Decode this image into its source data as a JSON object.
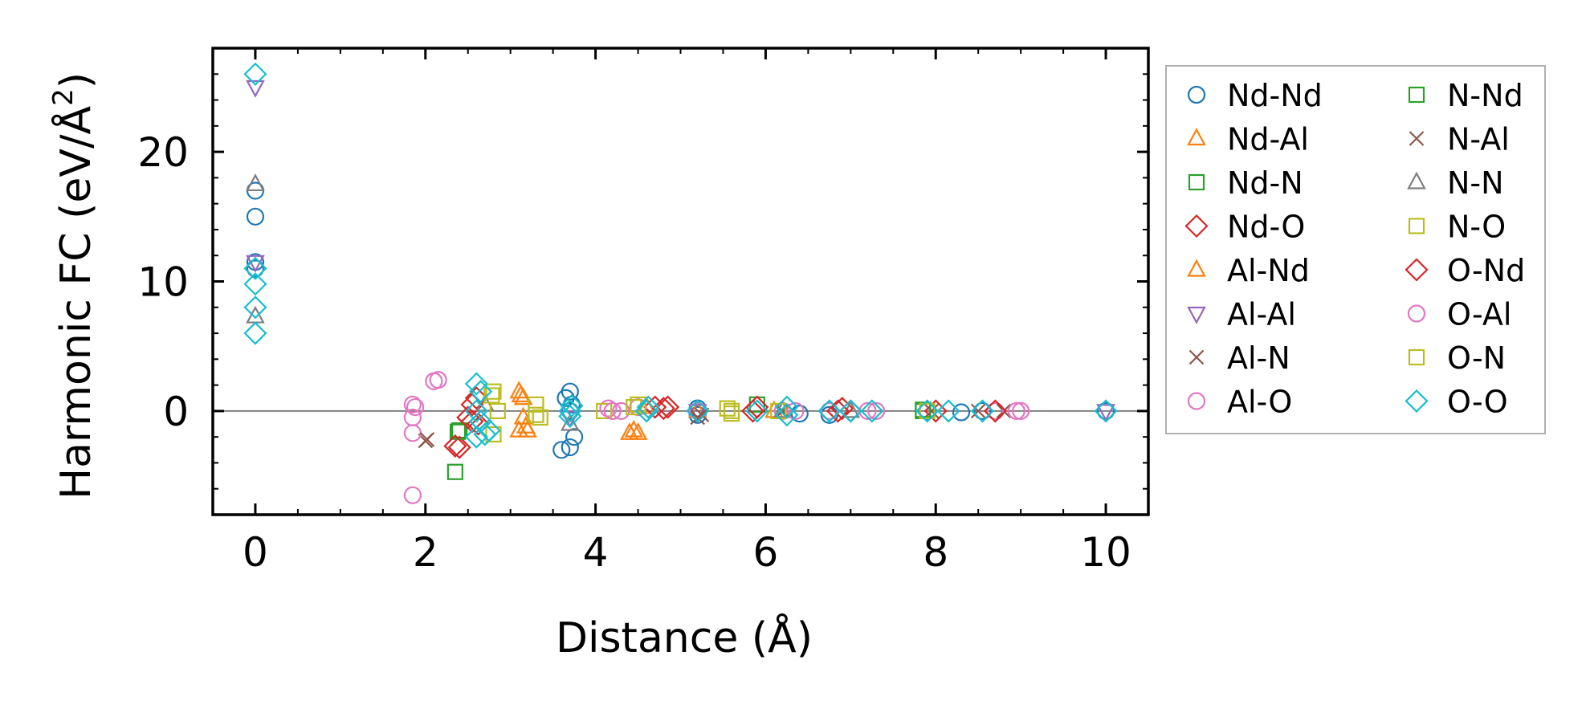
{
  "chart_data": {
    "type": "scatter",
    "title": "",
    "xlabel": "Distance (Å)",
    "ylabel": "Harmonic FC (eV/Å",
    "ylabel_sup": "2",
    "ylabel_end": ")",
    "xlim": [
      -0.5,
      10.5
    ],
    "ylim": [
      -8,
      28
    ],
    "xticks": [
      0,
      2,
      4,
      6,
      8,
      10
    ],
    "xtick_labels": [
      "0",
      "2",
      "4",
      "6",
      "8",
      "10"
    ],
    "yticks": [
      0,
      10,
      20
    ],
    "ytick_labels": [
      "0",
      "10",
      "20"
    ],
    "x_minor_step": 0.5,
    "y_minor_step": 2,
    "zero_line": true,
    "legend": {
      "placement": "outside-right",
      "columns": 2
    },
    "series": [
      {
        "name": "Nd-Nd",
        "marker": "circle",
        "color": "#1f77b4",
        "points": [
          [
            0,
            17
          ],
          [
            0,
            15
          ],
          [
            0,
            11.5
          ],
          [
            0,
            11
          ],
          [
            3.6,
            -3
          ],
          [
            3.65,
            1
          ],
          [
            3.7,
            1.5
          ],
          [
            3.72,
            0.5
          ],
          [
            3.7,
            -2.8
          ],
          [
            3.75,
            -2
          ],
          [
            3.7,
            0
          ],
          [
            5.2,
            0.2
          ],
          [
            5.2,
            -0.3
          ],
          [
            6.4,
            -0.2
          ],
          [
            6.75,
            -0.3
          ],
          [
            7.9,
            0
          ],
          [
            8.3,
            -0.1
          ],
          [
            8.55,
            0
          ],
          [
            10,
            0
          ]
        ]
      },
      {
        "name": "Nd-Al",
        "marker": "triangle-up",
        "color": "#ff7f0e",
        "points": [
          [
            3.1,
            1.5
          ],
          [
            3.15,
            1
          ],
          [
            3.1,
            -1.5
          ],
          [
            3.2,
            -1.5
          ],
          [
            3.15,
            -0.5
          ],
          [
            4.4,
            -1.7
          ],
          [
            4.5,
            -1.7
          ],
          [
            4.6,
            0.3
          ],
          [
            5.2,
            0
          ],
          [
            6.1,
            0
          ]
        ]
      },
      {
        "name": "Nd-N",
        "marker": "square",
        "color": "#2ca02c",
        "points": [
          [
            2.35,
            -4.7
          ],
          [
            2.4,
            -1.5
          ],
          [
            5.9,
            0.5
          ],
          [
            7.85,
            0
          ]
        ]
      },
      {
        "name": "Nd-O",
        "marker": "diamond",
        "color": "#d62728",
        "points": [
          [
            2.4,
            -2.8
          ],
          [
            2.5,
            -0.5
          ],
          [
            2.55,
            0.5
          ],
          [
            2.6,
            1
          ],
          [
            2.62,
            -1
          ],
          [
            4.7,
            0.3
          ],
          [
            4.85,
            0.3
          ],
          [
            5.9,
            0.3
          ],
          [
            6.9,
            0.2
          ],
          [
            7.0,
            0
          ],
          [
            8.0,
            0
          ]
        ]
      },
      {
        "name": "Al-Nd",
        "marker": "triangle-up",
        "color": "#ff7f0e",
        "points": [
          [
            3.12,
            1.2
          ],
          [
            3.18,
            -1.2
          ],
          [
            4.45,
            -1.5
          ],
          [
            5.2,
            0
          ]
        ]
      },
      {
        "name": "Al-Al",
        "marker": "triangle-down",
        "color": "#9467bd",
        "points": [
          [
            0,
            25
          ],
          [
            0,
            11.5
          ],
          [
            3.7,
            -0.5
          ],
          [
            5.2,
            0
          ],
          [
            10,
            0
          ]
        ]
      },
      {
        "name": "Al-N",
        "marker": "x",
        "color": "#8c564b",
        "points": [
          [
            2.0,
            -2.3
          ],
          [
            5.2,
            -0.5
          ],
          [
            6.2,
            0
          ],
          [
            7.95,
            0
          ],
          [
            8.8,
            0
          ]
        ]
      },
      {
        "name": "Al-O",
        "marker": "circle",
        "color": "#e377c2",
        "points": [
          [
            1.85,
            -6.5
          ],
          [
            1.85,
            0.5
          ],
          [
            1.85,
            -0.5
          ],
          [
            1.85,
            -1.7
          ],
          [
            2.15,
            2.4
          ],
          [
            4.15,
            0.2
          ],
          [
            4.3,
            0
          ],
          [
            4.5,
            0.3
          ],
          [
            5.2,
            0
          ],
          [
            6.2,
            0
          ],
          [
            6.75,
            0
          ],
          [
            7.3,
            0
          ],
          [
            8.7,
            0
          ],
          [
            9.0,
            0
          ]
        ]
      },
      {
        "name": "N-Nd",
        "marker": "square",
        "color": "#2ca02c",
        "points": [
          [
            2.38,
            -1.6
          ],
          [
            7.85,
            0.1
          ]
        ]
      },
      {
        "name": "N-Al",
        "marker": "x",
        "color": "#8c564b",
        "points": [
          [
            2.02,
            -2.2
          ],
          [
            5.25,
            -0.3
          ],
          [
            8.5,
            0
          ]
        ]
      },
      {
        "name": "N-N",
        "marker": "triangle-up",
        "color": "#7f7f7f",
        "points": [
          [
            0,
            17.5
          ],
          [
            0,
            7.3
          ],
          [
            2.7,
            0.5
          ],
          [
            3.7,
            -1
          ],
          [
            6.2,
            0
          ],
          [
            7.0,
            0
          ]
        ]
      },
      {
        "name": "N-O",
        "marker": "square",
        "color": "#bcbd22",
        "points": [
          [
            2.8,
            1.5
          ],
          [
            2.8,
            -1.8
          ],
          [
            2.85,
            0
          ],
          [
            3.3,
            0.5
          ],
          [
            3.35,
            -0.5
          ],
          [
            4.1,
            0
          ],
          [
            4.5,
            0.5
          ],
          [
            5.55,
            0.2
          ],
          [
            5.6,
            -0.2
          ],
          [
            7.9,
            0
          ]
        ]
      },
      {
        "name": "O-Nd",
        "marker": "diamond",
        "color": "#d62728",
        "points": [
          [
            2.35,
            -2.7
          ],
          [
            2.55,
            -0.8
          ],
          [
            4.8,
            0.2
          ],
          [
            5.85,
            0
          ],
          [
            6.85,
            0
          ],
          [
            8.7,
            0
          ]
        ]
      },
      {
        "name": "O-Al",
        "marker": "circle",
        "color": "#e377c2",
        "points": [
          [
            1.88,
            0.3
          ],
          [
            2.1,
            2.3
          ],
          [
            4.2,
            0
          ],
          [
            6.35,
            0
          ],
          [
            7.2,
            0
          ],
          [
            8.95,
            0
          ]
        ]
      },
      {
        "name": "O-N",
        "marker": "square",
        "color": "#bcbd22",
        "points": [
          [
            2.78,
            1.2
          ],
          [
            3.3,
            -0.3
          ],
          [
            4.45,
            0.3
          ],
          [
            5.6,
            0
          ],
          [
            6.15,
            0
          ]
        ]
      },
      {
        "name": "O-O",
        "marker": "diamond",
        "color": "#17becf",
        "points": [
          [
            0,
            26
          ],
          [
            0,
            11
          ],
          [
            0,
            9.8
          ],
          [
            0,
            8
          ],
          [
            0,
            6
          ],
          [
            2.6,
            2.1
          ],
          [
            2.65,
            1.5
          ],
          [
            2.6,
            0
          ],
          [
            2.65,
            -0.8
          ],
          [
            2.7,
            -1.8
          ],
          [
            2.6,
            -2
          ],
          [
            2.75,
            -1.5
          ],
          [
            3.7,
            0
          ],
          [
            3.72,
            0.4
          ],
          [
            3.7,
            -0.4
          ],
          [
            4.6,
            0
          ],
          [
            4.62,
            0.3
          ],
          [
            5.2,
            0
          ],
          [
            5.9,
            0
          ],
          [
            6.25,
            -0.3
          ],
          [
            6.25,
            0.3
          ],
          [
            6.75,
            0
          ],
          [
            7.0,
            0
          ],
          [
            7.25,
            0
          ],
          [
            7.9,
            0
          ],
          [
            8.15,
            0
          ],
          [
            8.55,
            0
          ],
          [
            10,
            0
          ]
        ]
      }
    ]
  }
}
